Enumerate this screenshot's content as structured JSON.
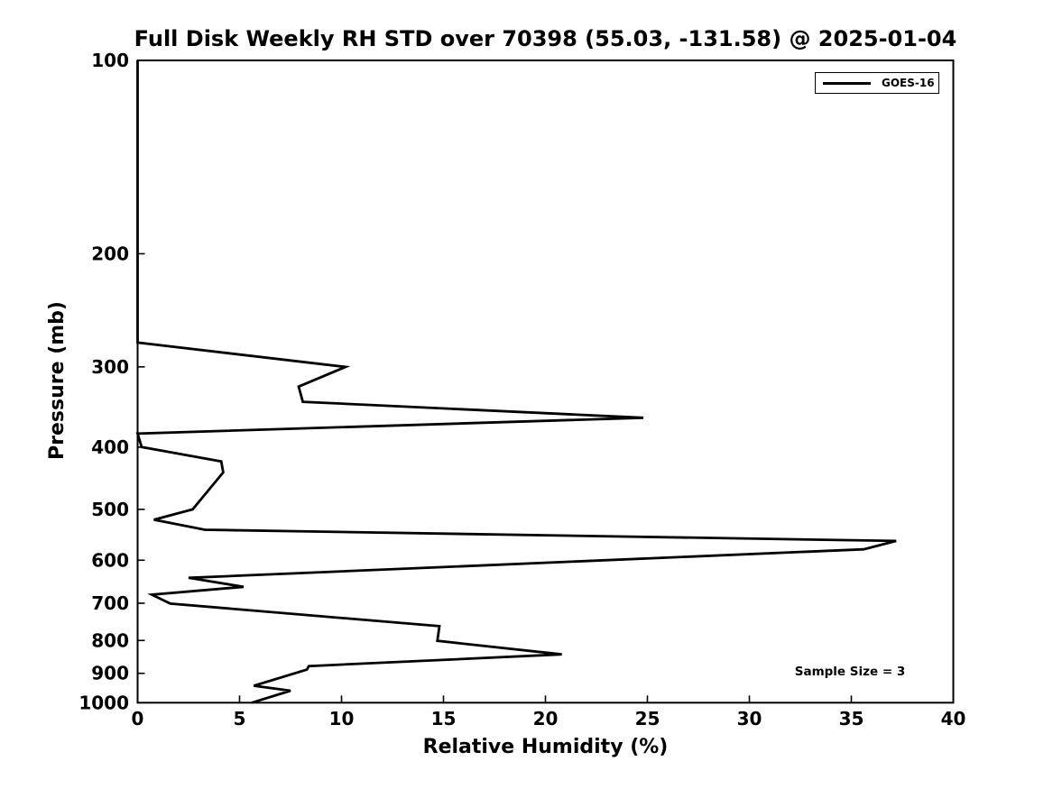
{
  "title": "Full Disk Weekly RH STD over 70398 (55.03, -131.58) @ 2025-01-04",
  "axes": {
    "xlabel": "Relative Humidity (%)",
    "ylabel": "Pressure (mb)"
  },
  "legend": {
    "label": "GOES-16"
  },
  "annotation": {
    "text": "Sample Size = 3"
  },
  "colors": {
    "line": "#000000",
    "axis": "#000000",
    "background": "#ffffff",
    "text": "#000000"
  },
  "chart_data": {
    "type": "line",
    "title": "Full Disk Weekly RH STD over 70398 (55.03, -131.58) @ 2025-01-04",
    "xlabel": "Relative Humidity (%)",
    "ylabel": "Pressure (mb)",
    "xlim": [
      0,
      40
    ],
    "ylim": [
      100,
      1000
    ],
    "x_ticks": [
      0,
      5,
      10,
      15,
      20,
      25,
      30,
      35,
      40
    ],
    "y_ticks": [
      100,
      200,
      300,
      400,
      500,
      600,
      700,
      800,
      900,
      1000
    ],
    "y_scale": "log",
    "y_inverted": true,
    "grid": false,
    "legend_position": "top-right",
    "annotation": "Sample Size = 3",
    "series": [
      {
        "name": "GOES-16",
        "color": "#000000",
        "line_width": 2.8,
        "points_format": "[rh_std_percent, pressure_mb]",
        "points": [
          [
            0.0,
            100
          ],
          [
            0.0,
            275
          ],
          [
            10.2,
            300
          ],
          [
            7.9,
            322
          ],
          [
            8.1,
            340
          ],
          [
            24.8,
            360
          ],
          [
            0.0,
            381
          ],
          [
            0.2,
            400
          ],
          [
            4.1,
            421
          ],
          [
            4.2,
            438
          ],
          [
            2.7,
            500
          ],
          [
            0.8,
            519
          ],
          [
            3.3,
            538
          ],
          [
            37.2,
            560
          ],
          [
            35.6,
            577
          ],
          [
            2.5,
            639
          ],
          [
            5.2,
            660
          ],
          [
            0.7,
            679
          ],
          [
            1.6,
            701
          ],
          [
            14.8,
            760
          ],
          [
            14.7,
            801
          ],
          [
            20.8,
            841
          ],
          [
            8.4,
            877
          ],
          [
            8.3,
            888
          ],
          [
            5.7,
            941
          ],
          [
            7.5,
            958
          ],
          [
            5.6,
            1000
          ]
        ]
      }
    ]
  }
}
